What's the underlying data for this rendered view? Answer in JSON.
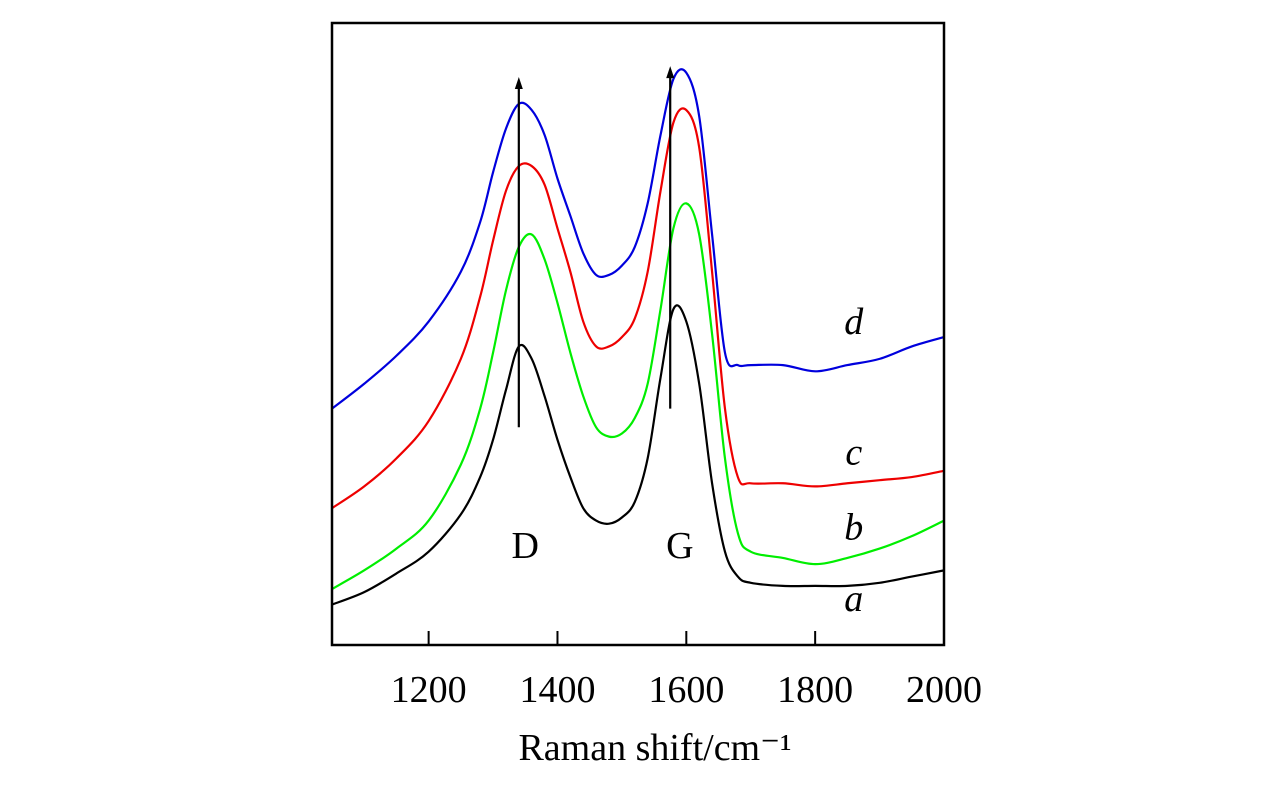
{
  "chart_data": {
    "type": "line",
    "title": "",
    "xlabel": "Raman shift/cm⁻¹",
    "ylabel": "",
    "xlim": [
      1050,
      2000
    ],
    "ylim": [
      0,
      100
    ],
    "x_ticks": [
      1200,
      1400,
      1600,
      1800,
      2000
    ],
    "grid": false,
    "legend": "none",
    "x": [
      1050,
      1100,
      1150,
      1200,
      1250,
      1280,
      1300,
      1320,
      1340,
      1360,
      1380,
      1400,
      1420,
      1440,
      1460,
      1480,
      1500,
      1520,
      1540,
      1560,
      1580,
      1600,
      1620,
      1640,
      1660,
      1680,
      1700,
      1750,
      1800,
      1850,
      1900,
      1950,
      2000
    ],
    "series": [
      {
        "name": "a",
        "color": "#000000",
        "values": [
          6.5,
          8.5,
          11.5,
          15,
          21,
          27,
          33,
          41,
          48,
          46,
          40,
          33,
          27,
          22,
          20,
          19.5,
          20.5,
          23,
          30,
          43,
          54,
          52,
          42,
          26,
          15,
          11,
          10,
          9.5,
          9.5,
          9.5,
          10,
          11,
          12
        ]
      },
      {
        "name": "b",
        "color": "#00ee00",
        "values": [
          9,
          12,
          15.5,
          20,
          29,
          38,
          47,
          57,
          64,
          66,
          62,
          55,
          47,
          40,
          35,
          33.5,
          34,
          36.5,
          42,
          54,
          67,
          71,
          66,
          50,
          30,
          18,
          15,
          14,
          13,
          14,
          15.5,
          17.5,
          20
        ]
      },
      {
        "name": "c",
        "color": "#ee0000",
        "values": [
          22,
          25.5,
          30,
          36,
          46,
          56,
          65,
          73,
          77,
          77,
          74,
          67,
          60,
          52,
          48,
          48,
          49.5,
          52.5,
          60,
          73,
          84,
          86,
          80,
          60,
          38,
          27,
          26,
          26,
          25.5,
          26,
          26.5,
          27,
          28
        ]
      },
      {
        "name": "d",
        "color": "#0000dd",
        "values": [
          38,
          42,
          46.5,
          52,
          60,
          68,
          76,
          83,
          87,
          86,
          82,
          75,
          69,
          63,
          59.5,
          59.5,
          61,
          64,
          71,
          82,
          91,
          92,
          85,
          66,
          47,
          45,
          45,
          45,
          44,
          45,
          46,
          48,
          49.5
        ]
      }
    ],
    "annotations": [
      {
        "label": "D",
        "x": 1340
      },
      {
        "label": "G",
        "x": 1575
      }
    ]
  }
}
